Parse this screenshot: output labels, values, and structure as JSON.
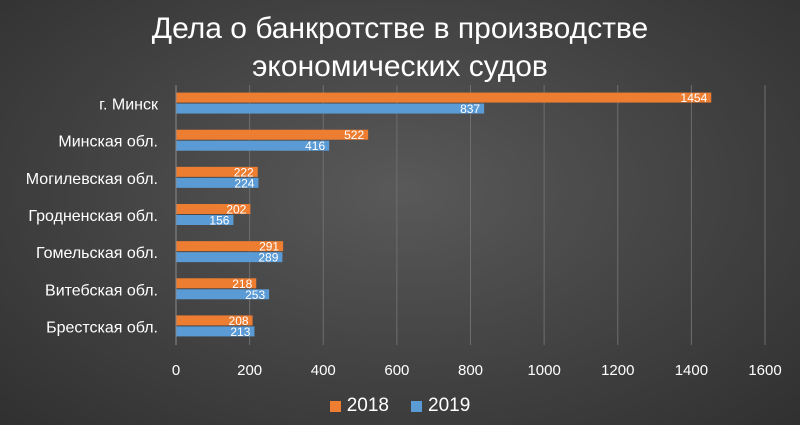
{
  "chart_data": {
    "type": "bar",
    "orientation": "horizontal",
    "title": "Дела о банкротстве в производстве экономических судов",
    "title_lines": [
      "Дела о банкротстве в производстве",
      "экономических судов"
    ],
    "categories": [
      "г. Минск",
      "Минская обл.",
      "Могилевская обл.",
      "Гродненская обл.",
      "Гомельская обл.",
      "Витебская обл.",
      "Брестская обл."
    ],
    "series": [
      {
        "name": "2018",
        "color": "#ED7D31",
        "values": [
          1454,
          522,
          222,
          202,
          291,
          218,
          208
        ]
      },
      {
        "name": "2019",
        "color": "#5B9BD5",
        "values": [
          837,
          416,
          224,
          156,
          289,
          253,
          213
        ]
      }
    ],
    "xlim": [
      0,
      1600
    ],
    "xticks": [
      0,
      200,
      400,
      600,
      800,
      1000,
      1200,
      1400,
      1600
    ],
    "grid": true,
    "legend_position": "bottom",
    "data_labels": true
  }
}
